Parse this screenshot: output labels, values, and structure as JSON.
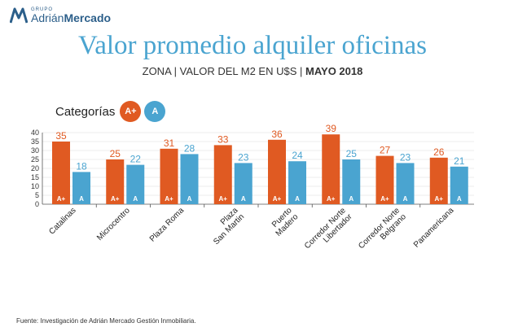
{
  "logo": {
    "grupo": "GRUPO",
    "name_light": "Adrián",
    "name_bold": "Mercado"
  },
  "title": "Valor promedio alquiler oficinas",
  "subtitle": {
    "prefix": "ZONA | VALOR DEL M2 EN U$S |",
    "bold": "MAYO 2018"
  },
  "legend": {
    "label": "Categorías",
    "items": [
      "A+",
      "A"
    ]
  },
  "footer": "Fuente: Investigación de Adrián Mercado Gestión Inmobiliaria.",
  "colors": {
    "a_plus": "#e05a22",
    "a": "#4aa4d0",
    "axis": "#555555",
    "grid": "#d9d9d9"
  },
  "chart_data": {
    "type": "bar",
    "categories": [
      "Catalinas",
      "Microcentro",
      "Plaza Roma",
      "Plaza\nSan Martin",
      "Puerto\nMadero",
      "Corredor Norte\nLibertador",
      "Corredor Norte\nBelgrano",
      "Panamericana"
    ],
    "series": [
      {
        "name": "A+",
        "values": [
          35,
          25,
          31,
          33,
          36,
          39,
          27,
          26
        ]
      },
      {
        "name": "A",
        "values": [
          18,
          22,
          28,
          23,
          24,
          25,
          23,
          21
        ]
      }
    ],
    "ylim": [
      0,
      40
    ],
    "yticks": [
      0,
      5,
      10,
      15,
      20,
      25,
      30,
      35,
      40
    ],
    "xlabel": "",
    "ylabel": "",
    "grid": true
  }
}
